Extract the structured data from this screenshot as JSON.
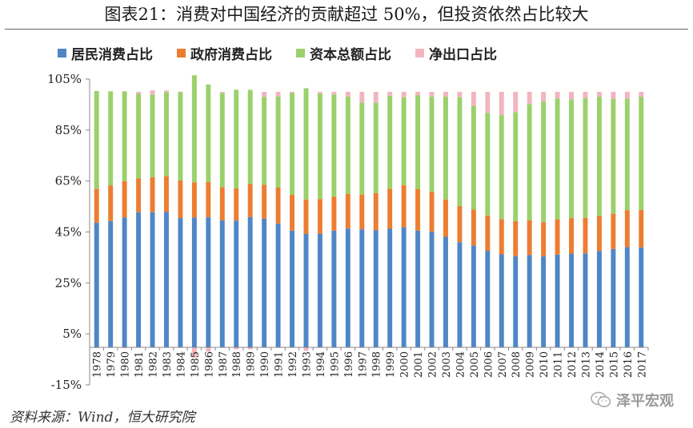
{
  "title": "图表21：消费对中国经济的贡献超过 50%，但投资依然占比较大",
  "source": "资料来源：Wind，恒大研究院",
  "watermark": "泽平宏观",
  "chart_data": {
    "type": "bar",
    "stacked": true,
    "categories": [
      "1978",
      "1979",
      "1980",
      "1981",
      "1982",
      "1983",
      "1984",
      "1985",
      "1986",
      "1987",
      "1988",
      "1989",
      "1990",
      "1991",
      "1992",
      "1993",
      "1994",
      "1995",
      "1996",
      "1997",
      "1998",
      "1999",
      "2000",
      "2001",
      "2002",
      "2003",
      "2004",
      "2005",
      "2006",
      "2007",
      "2008",
      "2009",
      "2010",
      "2011",
      "2012",
      "2013",
      "2014",
      "2015",
      "2016",
      "2017"
    ],
    "series": [
      {
        "name": "居民消费占比",
        "color": "#4f86c6",
        "values": [
          48.8,
          49.4,
          50.8,
          52.9,
          52.9,
          53.0,
          50.6,
          50.8,
          50.9,
          49.7,
          49.6,
          51.0,
          50.4,
          48.5,
          45.7,
          44.4,
          44.5,
          45.7,
          46.5,
          46.2,
          45.8,
          46.4,
          47.0,
          45.7,
          45.3,
          43.3,
          41.2,
          39.8,
          37.8,
          36.4,
          35.7,
          36.1,
          35.6,
          36.3,
          36.7,
          36.8,
          37.7,
          38.5,
          39.2,
          39.1
        ]
      },
      {
        "name": "政府消费占比",
        "color": "#ed7d31",
        "values": [
          13.3,
          14.0,
          14.3,
          13.3,
          13.7,
          14.0,
          14.7,
          13.8,
          13.8,
          13.0,
          12.6,
          12.9,
          13.3,
          14.0,
          14.0,
          13.5,
          13.5,
          13.3,
          13.5,
          13.6,
          14.6,
          15.7,
          16.5,
          16.3,
          15.6,
          14.6,
          14.1,
          14.1,
          13.8,
          13.8,
          13.7,
          13.6,
          13.4,
          13.8,
          13.9,
          13.9,
          13.7,
          13.8,
          14.5,
          14.7
        ]
      },
      {
        "name": "资本总额占比",
        "color": "#9bd16c",
        "values": [
          38.2,
          36.8,
          35.1,
          33.0,
          32.3,
          32.9,
          34.6,
          41.9,
          38.2,
          36.8,
          38.6,
          36.9,
          34.3,
          35.7,
          39.9,
          43.5,
          41.3,
          40.0,
          38.1,
          36.0,
          35.3,
          36.4,
          34.4,
          36.6,
          37.3,
          40.2,
          42.6,
          40.6,
          40.2,
          40.7,
          42.6,
          45.5,
          47.3,
          47.3,
          46.5,
          46.9,
          46.7,
          45.0,
          43.7,
          44.3
        ]
      },
      {
        "name": "净出口占比",
        "color": "#f2b5bf",
        "values": [
          -0.3,
          -0.2,
          -0.3,
          0.8,
          1.7,
          0.6,
          0.2,
          -4.0,
          -1.7,
          0.5,
          -0.8,
          -0.8,
          2.0,
          1.8,
          0.4,
          -1.4,
          0.7,
          1.0,
          1.9,
          4.2,
          4.3,
          1.5,
          2.1,
          1.4,
          1.8,
          1.9,
          2.1,
          5.5,
          8.2,
          9.1,
          8.0,
          4.8,
          3.7,
          2.6,
          2.9,
          2.4,
          1.9,
          2.7,
          2.6,
          1.9
        ]
      }
    ],
    "yticks": [
      "105%",
      "85%",
      "65%",
      "45%",
      "25%",
      "5%",
      "-15%"
    ],
    "ylim": [
      -15,
      105
    ],
    "xlabel": "",
    "ylabel": ""
  }
}
